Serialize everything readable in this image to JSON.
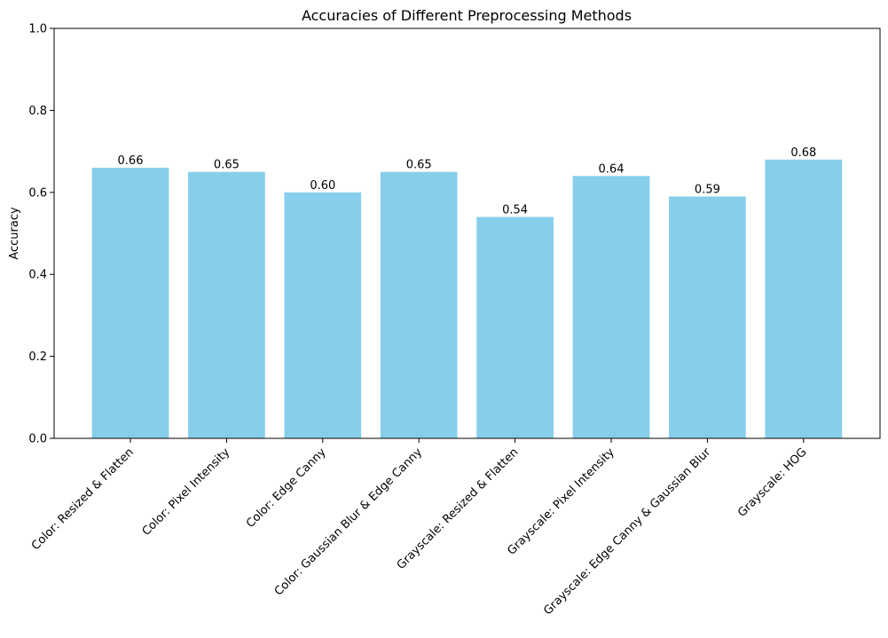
{
  "colors": {
    "bar": "#87ceeb",
    "axis": "#000000",
    "background": "#ffffff"
  },
  "chart_data": {
    "type": "bar",
    "title": "Accuracies of Different Preprocessing Methods",
    "xlabel": "",
    "ylabel": "Accuracy",
    "ylim": [
      0,
      1.0
    ],
    "yticks": [
      0.0,
      0.2,
      0.4,
      0.6,
      0.8,
      1.0
    ],
    "ytick_labels": [
      "0.0",
      "0.2",
      "0.4",
      "0.6",
      "0.8",
      "1.0"
    ],
    "grid": false,
    "categories": [
      "Color: Resized & Flatten",
      "Color: Pixel Intensity",
      "Color: Edge Canny",
      "Color: Gaussian Blur & Edge Canny",
      "Grayscale: Resized & Flatten",
      "Grayscale: Pixel Intensity",
      "Grayscale: Edge Canny & Gaussian Blur",
      "Grayscale: HOG"
    ],
    "values": [
      0.66,
      0.65,
      0.6,
      0.65,
      0.54,
      0.64,
      0.59,
      0.68
    ],
    "data_labels": [
      "0.66",
      "0.65",
      "0.60",
      "0.65",
      "0.54",
      "0.64",
      "0.59",
      "0.68"
    ]
  }
}
